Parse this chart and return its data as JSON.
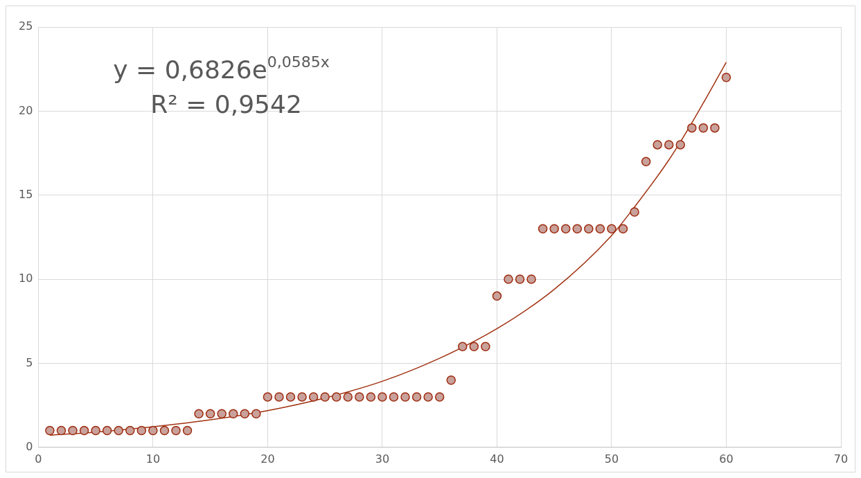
{
  "chart_data": {
    "type": "scatter",
    "x": [
      1,
      2,
      3,
      4,
      5,
      6,
      7,
      8,
      9,
      10,
      11,
      12,
      13,
      14,
      15,
      16,
      17,
      18,
      19,
      20,
      21,
      22,
      23,
      24,
      25,
      26,
      27,
      28,
      29,
      30,
      31,
      32,
      33,
      34,
      35,
      36,
      37,
      38,
      39,
      40,
      41,
      42,
      43,
      44,
      45,
      46,
      47,
      48,
      49,
      50,
      51,
      52,
      53,
      54,
      55,
      56,
      57,
      58,
      59,
      60
    ],
    "series": [
      {
        "color": "#c9a19b",
        "marker": "circle",
        "values": [
          1,
          1,
          1,
          1,
          1,
          1,
          1,
          1,
          1,
          1,
          1,
          1,
          1,
          2,
          2,
          2,
          2,
          2,
          2,
          3,
          3,
          3,
          3,
          3,
          3,
          3,
          3,
          3,
          3,
          3,
          3,
          3,
          3,
          3,
          3,
          4,
          6,
          6,
          6,
          9,
          10,
          10,
          10,
          13,
          13,
          13,
          13,
          13,
          13,
          13,
          13,
          14,
          17,
          18,
          18,
          18,
          19,
          19,
          19,
          22
        ]
      },
      {
        "type": "line",
        "marker": "none",
        "color": "#a0300f",
        "x": [
          1,
          5,
          10,
          15,
          20,
          25,
          30,
          35,
          40,
          45,
          50,
          52,
          55,
          57,
          60
        ],
        "values": [
          0.72,
          0.91,
          1.23,
          1.64,
          2.19,
          2.94,
          3.93,
          5.3,
          7.06,
          9.4,
          12.6,
          14.3,
          17.1,
          19.3,
          22.9
        ]
      }
    ],
    "xlim": [
      0,
      70
    ],
    "xticks": [
      0,
      10,
      20,
      30,
      40,
      50,
      60,
      70
    ],
    "ylim": [
      0,
      25
    ],
    "yticks": [
      0,
      5,
      10,
      15,
      20,
      25
    ],
    "annotations": [
      "y = 0,6826e$^{0,0585x}$",
      "R² = 0,9542"
    ],
    "grid": true,
    "legend": false
  }
}
